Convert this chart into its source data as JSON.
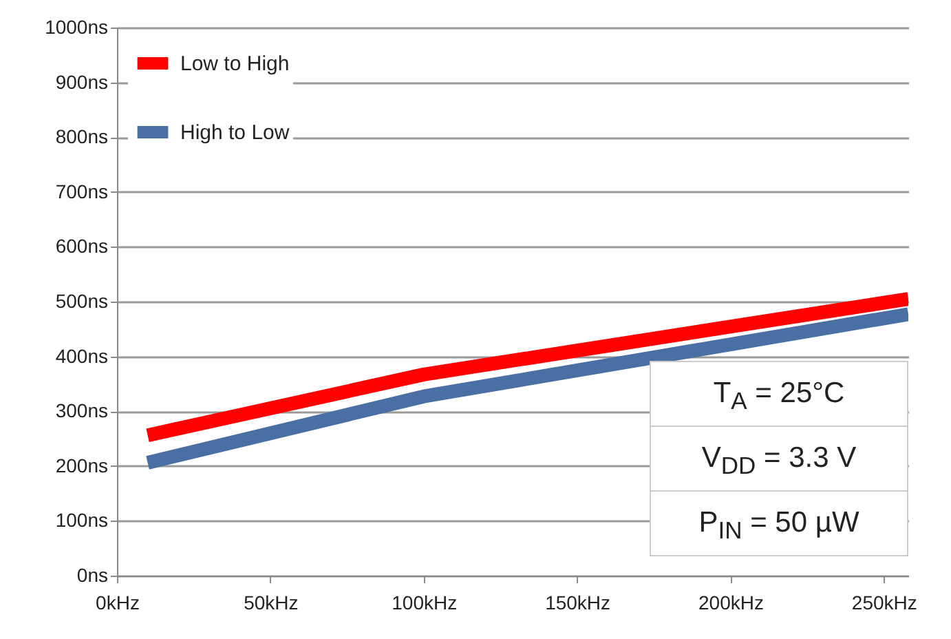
{
  "chart_data": {
    "type": "line",
    "x": [
      10,
      100,
      258
    ],
    "series": [
      {
        "name": "Low to High",
        "color": "#ff0000",
        "values": [
          256,
          367,
          505
        ]
      },
      {
        "name": "High to Low",
        "color": "#4a6fa5",
        "values": [
          206,
          327,
          477
        ]
      }
    ],
    "xlim": [
      0,
      258
    ],
    "xticks": [
      {
        "value": 0,
        "label": "0kHz"
      },
      {
        "value": 50,
        "label": "50kHz"
      },
      {
        "value": 100,
        "label": "100kHz"
      },
      {
        "value": 150,
        "label": "150kHz"
      },
      {
        "value": 200,
        "label": "200kHz"
      },
      {
        "value": 250,
        "label": "250kHz"
      }
    ],
    "ylim": [
      0,
      1000
    ],
    "yticks": [
      {
        "value": 0,
        "label": "0ns"
      },
      {
        "value": 100,
        "label": "100ns"
      },
      {
        "value": 200,
        "label": "200ns"
      },
      {
        "value": 300,
        "label": "300ns"
      },
      {
        "value": 400,
        "label": "400ns"
      },
      {
        "value": 500,
        "label": "500ns"
      },
      {
        "value": 600,
        "label": "600ns"
      },
      {
        "value": 700,
        "label": "700ns"
      },
      {
        "value": 800,
        "label": "800ns"
      },
      {
        "value": 900,
        "label": "900ns"
      },
      {
        "value": 1000,
        "label": "1000ns"
      }
    ],
    "grid": "y",
    "legend": "top left",
    "annotations": [
      "T$_{A}$ = 25°C",
      "V$_{DD}$ = 3.3 V",
      "P$_{IN}$ = 50 µW"
    ]
  }
}
